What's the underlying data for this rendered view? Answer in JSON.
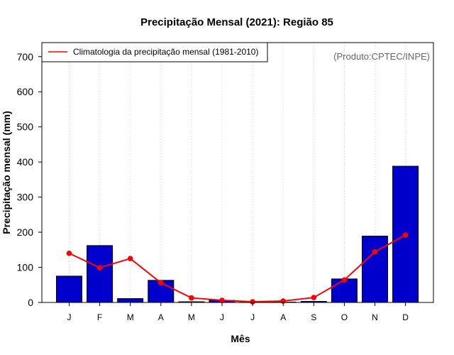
{
  "chart_data": {
    "type": "bar",
    "title": "Precipitação Mensal (2021): Região 85",
    "xlabel": "Mês",
    "ylabel": "Precipitação mensal (mm)",
    "ylim": [
      0,
      740
    ],
    "yticks": [
      0,
      100,
      200,
      300,
      400,
      500,
      600,
      700
    ],
    "categories": [
      "J",
      "F",
      "M",
      "A",
      "M",
      "J",
      "J",
      "A",
      "S",
      "O",
      "N",
      "D"
    ],
    "series": [
      {
        "name": "Precipitação mensal 2021",
        "type": "bar",
        "color": "#0000CD",
        "values": [
          75,
          162,
          11,
          63,
          2,
          6,
          1,
          1,
          3,
          67,
          189,
          388
        ]
      },
      {
        "name": "Climatologia da precipitação mensal (1981-2010)",
        "type": "line",
        "color": "#FF0000",
        "values": [
          140,
          99,
          125,
          56,
          13,
          6,
          2,
          4,
          14,
          64,
          144,
          192
        ]
      }
    ],
    "legend": {
      "label": "Climatologia da precipitação mensal (1981-2010)",
      "position": "top-left"
    },
    "credit": "(Produto:CPTEC/INPE)",
    "grid": "vertical dotted"
  }
}
